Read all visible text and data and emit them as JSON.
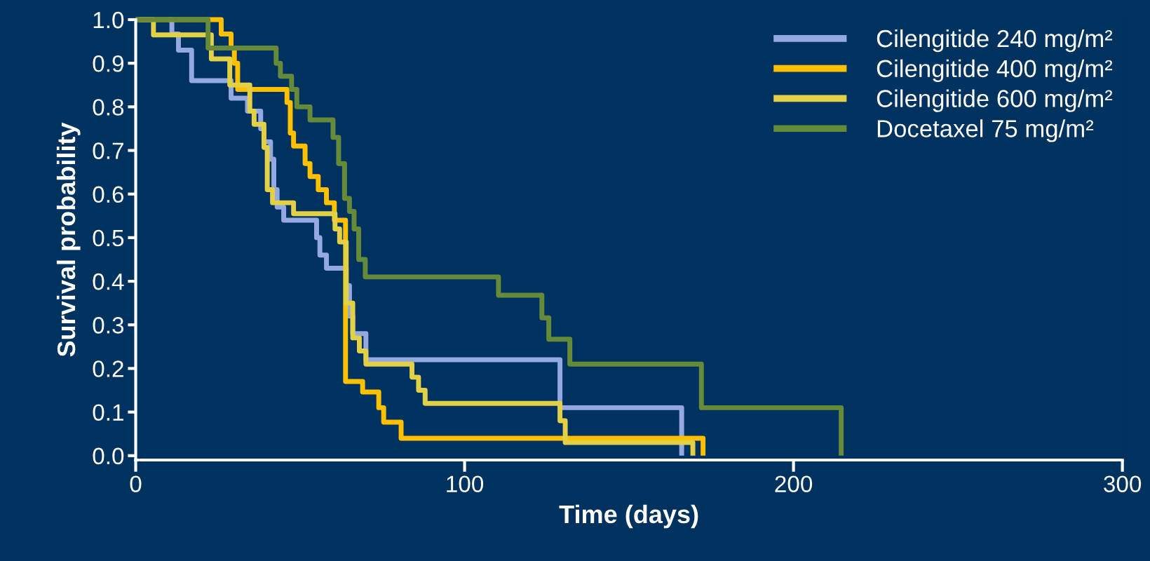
{
  "chart_data": {
    "type": "step",
    "xlabel": "Time (days)",
    "ylabel": "Survival probability",
    "xlim": [
      0,
      300
    ],
    "ylim": [
      -0.01,
      1.0
    ],
    "xticks": [
      0,
      100,
      200,
      300
    ],
    "yticks": [
      {
        "value": 0,
        "label": "0.0"
      },
      0.1,
      0.2,
      0.3,
      0.4,
      0.5,
      0.6,
      0.7,
      0.8,
      0.9,
      {
        "value": 1,
        "label": "1.0"
      }
    ],
    "grid": false,
    "legend": "top right",
    "line_style": "solid",
    "marker": "none",
    "series": [
      {
        "name": "Cilengitide 240 mg/m²",
        "color": "#93a9e0",
        "x": [
          10,
          11,
          13,
          17,
          29,
          34,
          38,
          39,
          41,
          42,
          43,
          45,
          55,
          56,
          58,
          64,
          65,
          66,
          70,
          129,
          166
        ],
        "values": [
          1.0,
          0.967,
          0.93,
          0.86,
          0.82,
          0.79,
          0.75,
          0.72,
          0.68,
          0.61,
          0.57,
          0.54,
          0.5,
          0.46,
          0.43,
          0.39,
          0.32,
          0.28,
          0.22,
          0.11,
          0.0
        ]
      },
      {
        "name": "Cilengitide 400 mg/m²",
        "color": "#ffc000",
        "x": [
          1,
          26,
          29,
          30,
          31,
          46,
          47,
          48,
          51.5,
          53,
          55.5,
          58,
          60.4,
          63.8,
          69,
          73.9,
          75.4,
          80.7,
          172.5
        ],
        "values": [
          1.0,
          0.967,
          0.935,
          0.9,
          0.84,
          0.81,
          0.74,
          0.71,
          0.67,
          0.64,
          0.61,
          0.58,
          0.54,
          0.17,
          0.146,
          0.11,
          0.077,
          0.04,
          0.0
        ]
      },
      {
        "name": "Cilengitide 600 mg/m²",
        "color": "#e2d046",
        "x": [
          0,
          5.4,
          23,
          28.6,
          34.7,
          36,
          39,
          40,
          41.6,
          48,
          60.6,
          62,
          64,
          66,
          68,
          70,
          84,
          86,
          88,
          129,
          130.6,
          169.4
        ],
        "values": [
          1.0,
          0.965,
          0.91,
          0.85,
          0.79,
          0.76,
          0.707,
          0.61,
          0.58,
          0.555,
          0.52,
          0.49,
          0.35,
          0.27,
          0.24,
          0.21,
          0.18,
          0.15,
          0.12,
          0.08,
          0.03,
          0.0
        ]
      },
      {
        "name": "Docetaxel 75 mg/m²",
        "color": "#658a3a",
        "x": [
          0,
          22,
          42.7,
          44,
          47.4,
          49,
          53,
          60,
          61.7,
          63.5,
          65,
          66.4,
          67.8,
          69.8,
          110.3,
          123.5,
          125.6,
          132,
          172,
          214.5
        ],
        "values": [
          1.0,
          0.935,
          0.9,
          0.87,
          0.84,
          0.8,
          0.77,
          0.73,
          0.67,
          0.59,
          0.56,
          0.52,
          0.45,
          0.41,
          0.368,
          0.316,
          0.267,
          0.21,
          0.11,
          0.0
        ]
      }
    ]
  }
}
